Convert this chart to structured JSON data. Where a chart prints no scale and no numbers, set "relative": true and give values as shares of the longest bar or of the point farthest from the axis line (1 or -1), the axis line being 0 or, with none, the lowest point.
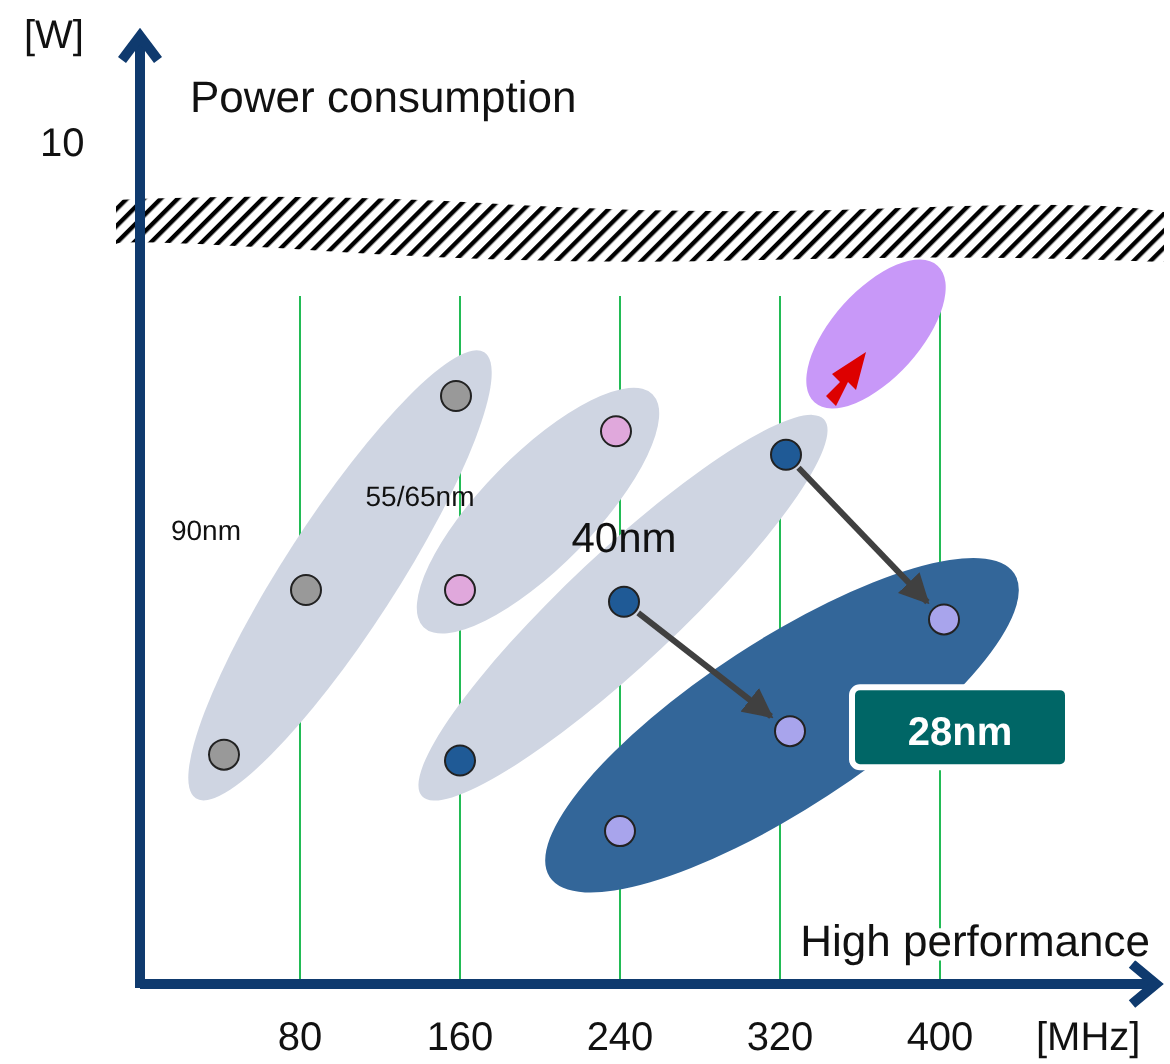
{
  "chart_data": {
    "type": "scatter",
    "xlabel": "High performance",
    "relative": true,
    "xlim": [
      0,
      505
    ],
    "xticks": [
      80,
      160,
      240,
      320,
      400
    ],
    "grid": "x",
    "marker": "circle",
    "annotations": [
      "[W]",
      "10",
      "[MHz]",
      "Power consumption"
    ],
    "series": [
      {
        "name": "90nm",
        "color": "#999999",
        "x": [
          42,
          83,
          158
        ],
        "values": [
          0.39,
          0.67,
          1
        ]
      },
      {
        "name": "55/65nm",
        "color": "#e0a8dc",
        "x": [
          160,
          238
        ],
        "values": [
          0.67,
          0.94
        ]
      },
      {
        "name": "40nm",
        "color": "#1f5a96",
        "x": [
          160,
          242,
          323
        ],
        "values": [
          0.38,
          0.65,
          0.9
        ]
      },
      {
        "name": "28nm",
        "color": "#a8a4ec",
        "x": [
          240,
          325,
          402
        ],
        "values": [
          0.26,
          0.43,
          0.62
        ]
      }
    ]
  }
}
